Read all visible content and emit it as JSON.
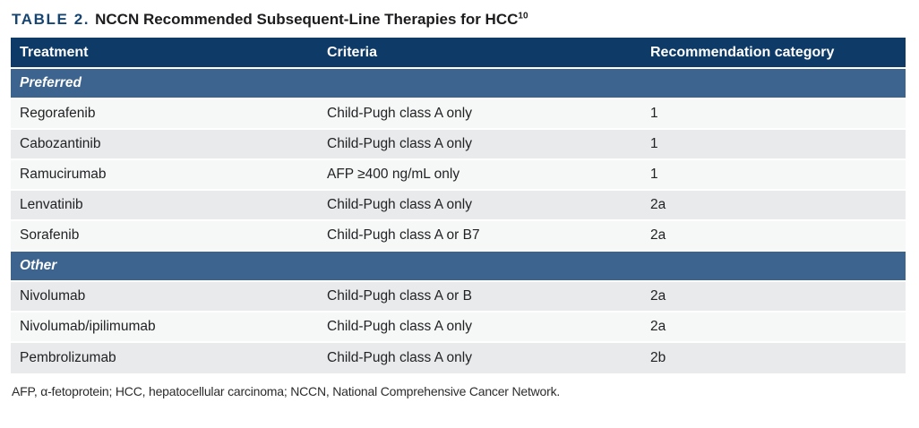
{
  "title": {
    "label": "TABLE 2.",
    "text": "NCCN Recommended Subsequent-Line Therapies for HCC",
    "superscript": "10"
  },
  "table": {
    "columns": [
      "Treatment",
      "Criteria",
      "Recommendation category"
    ],
    "sections": [
      {
        "name": "Preferred",
        "rows": [
          {
            "treatment": "Regorafenib",
            "criteria": "Child-Pugh class A only",
            "category": "1"
          },
          {
            "treatment": "Cabozantinib",
            "criteria": "Child-Pugh class A only",
            "category": "1"
          },
          {
            "treatment": "Ramucirumab",
            "criteria": "AFP ≥400 ng/mL only",
            "category": "1"
          },
          {
            "treatment": "Lenvatinib",
            "criteria": "Child-Pugh class A only",
            "category": "2a"
          },
          {
            "treatment": "Sorafenib",
            "criteria": "Child-Pugh class A or B7",
            "category": "2a"
          }
        ]
      },
      {
        "name": "Other",
        "rows": [
          {
            "treatment": "Nivolumab",
            "criteria": "Child-Pugh class A or B",
            "category": "2a"
          },
          {
            "treatment": "Nivolumab/ipilimumab",
            "criteria": "Child-Pugh class A only",
            "category": "2a"
          },
          {
            "treatment": "Pembrolizumab",
            "criteria": "Child-Pugh class A only",
            "category": "2b"
          }
        ]
      }
    ]
  },
  "footnote": "AFP, α-fetoprotein; HCC, hepatocellular carcinoma; NCCN, National Comprehensive Cancer Network.",
  "colors": {
    "header_bg": "#0d3a66",
    "section_bg": "#3c648e",
    "row_light": "#f6f7f7",
    "row_dark": "#e8eaeb",
    "title_accent": "#164572"
  }
}
